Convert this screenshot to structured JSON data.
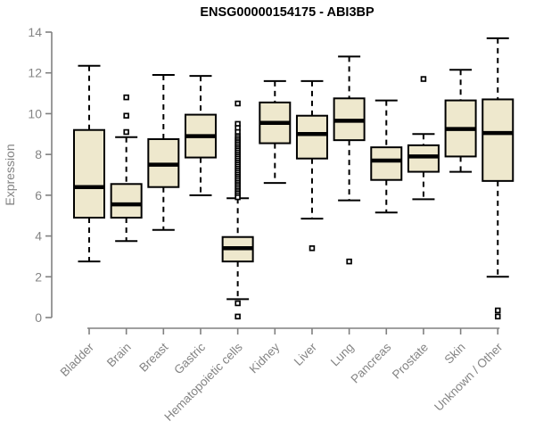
{
  "title": "ENSG00000154175 - ABI3BP",
  "colors": {
    "box_fill": "#EEE8CD",
    "box_border": "#000000",
    "median": "#000000",
    "whisker": "#000000",
    "axis": "#808080",
    "tick_label": "#848484",
    "title": "#000000",
    "background": "#ffffff"
  },
  "chart_data": {
    "type": "boxplot",
    "title": "ENSG00000154175 - ABI3BP",
    "xlabel": "",
    "ylabel": "Expression",
    "ylim": [
      0,
      14
    ],
    "yticks": [
      0,
      2,
      4,
      6,
      8,
      10,
      12,
      14
    ],
    "grid": false,
    "categories": [
      "Bladder",
      "Brain",
      "Breast",
      "Gastric",
      "Hematopoietic cells",
      "Kidney",
      "Liver",
      "Lung",
      "Pancreas",
      "Prostate",
      "Skin",
      "Unknown / Other"
    ],
    "series": [
      {
        "name": "Bladder",
        "whisker_low": 2.75,
        "q1": 4.9,
        "median": 6.4,
        "q3": 9.2,
        "whisker_high": 12.35,
        "outliers": []
      },
      {
        "name": "Brain",
        "whisker_low": 3.75,
        "q1": 4.9,
        "median": 5.55,
        "q3": 6.55,
        "whisker_high": 8.85,
        "outliers": [
          10.8,
          9.9,
          9.1
        ]
      },
      {
        "name": "Breast",
        "whisker_low": 4.3,
        "q1": 6.4,
        "median": 7.5,
        "q3": 8.75,
        "whisker_high": 11.9,
        "outliers": []
      },
      {
        "name": "Gastric",
        "whisker_low": 6.0,
        "q1": 7.85,
        "median": 8.9,
        "q3": 9.95,
        "whisker_high": 11.85,
        "outliers": []
      },
      {
        "name": "Hematopoietic cells",
        "whisker_low": 0.9,
        "q1": 2.75,
        "median": 3.4,
        "q3": 3.95,
        "whisker_high": 5.85,
        "outliers": [
          10.5,
          9.5,
          9.3,
          9.1,
          8.9,
          8.8,
          8.7,
          8.6,
          8.5,
          8.4,
          8.3,
          8.2,
          8.1,
          8.0,
          7.9,
          7.8,
          7.7,
          7.6,
          7.5,
          7.4,
          7.3,
          7.2,
          7.1,
          7.0,
          6.9,
          6.8,
          6.7,
          6.6,
          6.5,
          6.4,
          6.3,
          6.2,
          6.1,
          6.0,
          5.9,
          0.7,
          0.05
        ]
      },
      {
        "name": "Kidney",
        "whisker_low": 6.6,
        "q1": 8.55,
        "median": 9.55,
        "q3": 10.55,
        "whisker_high": 11.6,
        "outliers": []
      },
      {
        "name": "Liver",
        "whisker_low": 4.85,
        "q1": 7.8,
        "median": 9.0,
        "q3": 9.9,
        "whisker_high": 11.6,
        "outliers": [
          3.4
        ]
      },
      {
        "name": "Lung",
        "whisker_low": 5.75,
        "q1": 8.7,
        "median": 9.65,
        "q3": 10.75,
        "whisker_high": 12.8,
        "outliers": [
          2.75
        ]
      },
      {
        "name": "Pancreas",
        "whisker_low": 5.15,
        "q1": 6.75,
        "median": 7.7,
        "q3": 8.35,
        "whisker_high": 10.65,
        "outliers": []
      },
      {
        "name": "Prostate",
        "whisker_low": 5.8,
        "q1": 7.15,
        "median": 7.9,
        "q3": 8.45,
        "whisker_high": 9.0,
        "outliers": [
          11.7
        ]
      },
      {
        "name": "Skin",
        "whisker_low": 7.15,
        "q1": 7.9,
        "median": 9.25,
        "q3": 10.65,
        "whisker_high": 12.15,
        "outliers": []
      },
      {
        "name": "Unknown / Other",
        "whisker_low": 2.0,
        "q1": 6.7,
        "median": 9.05,
        "q3": 10.7,
        "whisker_high": 13.7,
        "outliers": [
          0.35,
          0.05
        ]
      }
    ]
  }
}
